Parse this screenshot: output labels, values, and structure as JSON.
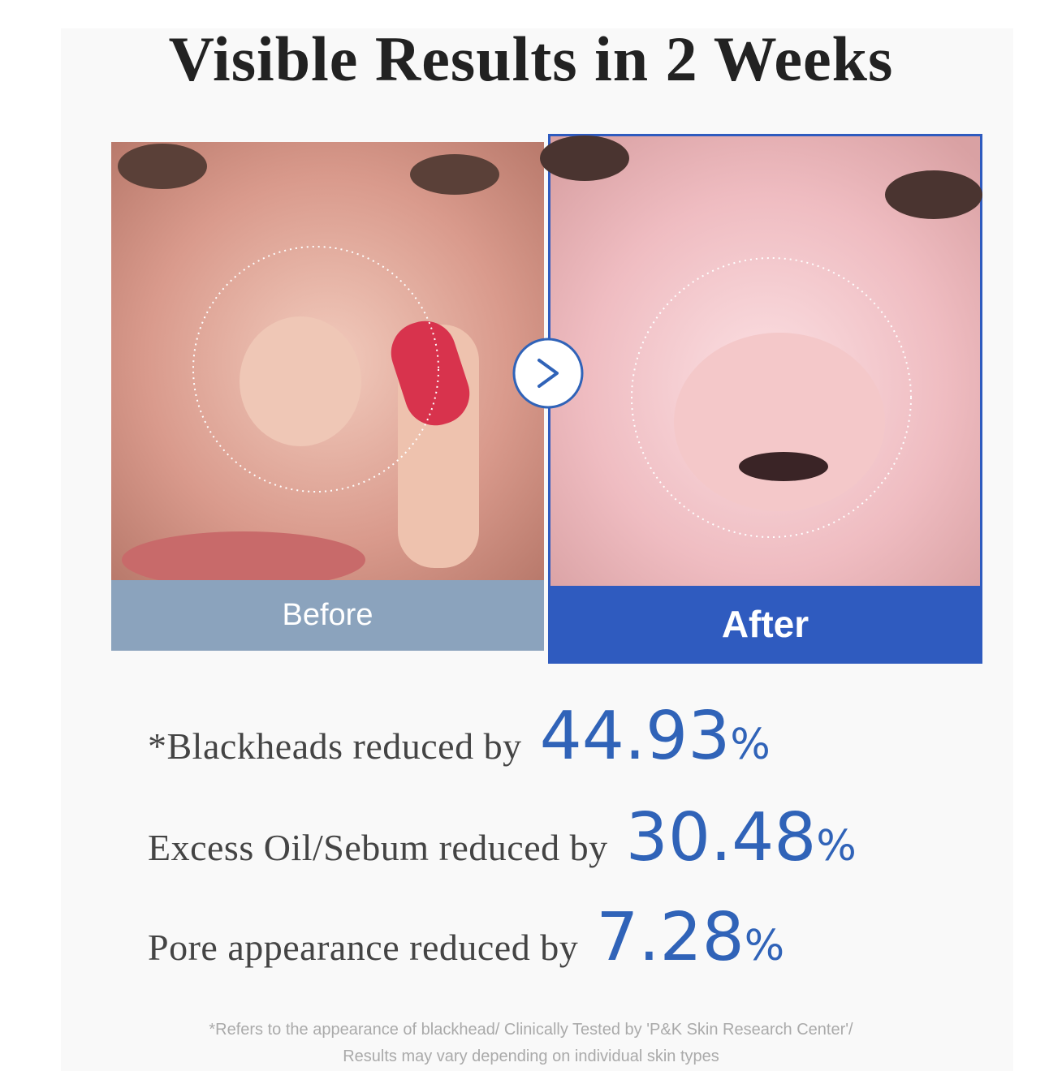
{
  "header": {
    "title": "Visible Results in 2 Weeks"
  },
  "comparison": {
    "before_label": "Before",
    "after_label": "After"
  },
  "results": [
    {
      "label": "*Blackheads reduced by",
      "value": "44.93",
      "unit": "%"
    },
    {
      "label": "Excess Oil/Sebum reduced by",
      "value": "30.48",
      "unit": "%"
    },
    {
      "label": "Pore appearance reduced by",
      "value": "7.28",
      "unit": "%"
    }
  ],
  "footnote": {
    "lines": [
      "*Refers to the appearance of blackhead/ Clinically Tested by 'P&K Skin Research Center'/",
      "Results may vary depending on individual skin types"
    ]
  }
}
